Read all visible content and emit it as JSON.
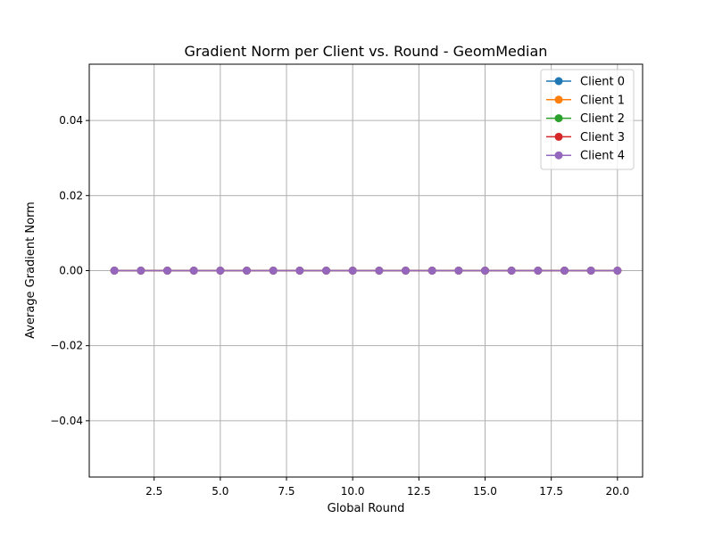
{
  "chart_data": {
    "type": "line",
    "title": "Gradient Norm per Client vs. Round - GeomMedian",
    "xlabel": "Global Round",
    "ylabel": "Average Gradient Norm",
    "xlim": [
      0.05,
      20.95
    ],
    "ylim": [
      -0.055,
      0.055
    ],
    "xticks": [
      2.5,
      5.0,
      7.5,
      10.0,
      12.5,
      15.0,
      17.5,
      20.0
    ],
    "xtick_labels": [
      "2.5",
      "5.0",
      "7.5",
      "10.0",
      "12.5",
      "15.0",
      "17.5",
      "20.0"
    ],
    "yticks": [
      -0.04,
      -0.02,
      0.0,
      0.02,
      0.04
    ],
    "ytick_labels": [
      "−0.04",
      "−0.02",
      "0.00",
      "0.02",
      "0.04"
    ],
    "grid": true,
    "legend_position": "top-right",
    "x": [
      1,
      2,
      3,
      4,
      5,
      6,
      7,
      8,
      9,
      10,
      11,
      12,
      13,
      14,
      15,
      16,
      17,
      18,
      19,
      20
    ],
    "series": [
      {
        "name": "Client 0",
        "color": "#1f77b4",
        "marker": "circle",
        "values": [
          0,
          0,
          0,
          0,
          0,
          0,
          0,
          0,
          0,
          0,
          0,
          0,
          0,
          0,
          0,
          0,
          0,
          0,
          0,
          0
        ]
      },
      {
        "name": "Client 1",
        "color": "#ff7f0e",
        "marker": "circle",
        "values": [
          0,
          0,
          0,
          0,
          0,
          0,
          0,
          0,
          0,
          0,
          0,
          0,
          0,
          0,
          0,
          0,
          0,
          0,
          0,
          0
        ]
      },
      {
        "name": "Client 2",
        "color": "#2ca02c",
        "marker": "circle",
        "values": [
          0,
          0,
          0,
          0,
          0,
          0,
          0,
          0,
          0,
          0,
          0,
          0,
          0,
          0,
          0,
          0,
          0,
          0,
          0,
          0
        ]
      },
      {
        "name": "Client 3",
        "color": "#d62728",
        "marker": "circle",
        "values": [
          0,
          0,
          0,
          0,
          0,
          0,
          0,
          0,
          0,
          0,
          0,
          0,
          0,
          0,
          0,
          0,
          0,
          0,
          0,
          0
        ]
      },
      {
        "name": "Client 4",
        "color": "#9467bd",
        "marker": "circle",
        "values": [
          0,
          0,
          0,
          0,
          0,
          0,
          0,
          0,
          0,
          0,
          0,
          0,
          0,
          0,
          0,
          0,
          0,
          0,
          0,
          0
        ]
      }
    ]
  }
}
